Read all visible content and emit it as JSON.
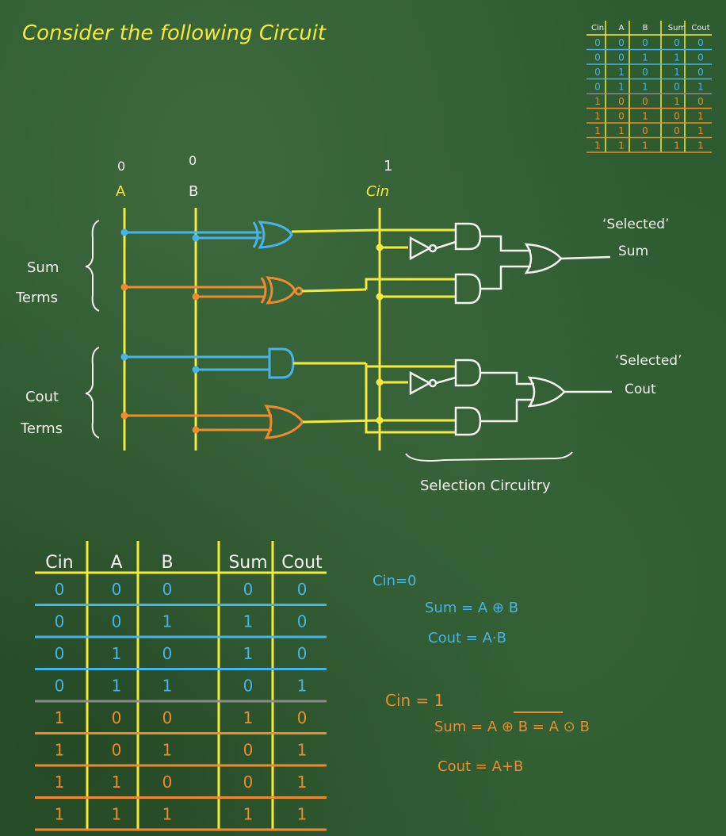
{
  "title": "Consider the following Circuit",
  "inputs": {
    "a": {
      "label": "A",
      "value": "0"
    },
    "b": {
      "label": "B",
      "value": "0"
    },
    "cin": {
      "label": "Cin",
      "value": "1"
    }
  },
  "labels": {
    "sum_terms_1": "Sum",
    "sum_terms_2": "Terms",
    "cout_terms_1": "Cout",
    "cout_terms_2": "Terms",
    "selected_sum_1": "‘Selected’",
    "selected_sum_2": "Sum",
    "selected_cout_1": "‘Selected’",
    "selected_cout_2": "Cout",
    "selection": "Selection Circuitry"
  },
  "truth_table": {
    "headers": [
      "Cin",
      "A",
      "B",
      "Sum",
      "Cout"
    ],
    "rows": [
      [
        "0",
        "0",
        "0",
        "0",
        "0"
      ],
      [
        "0",
        "0",
        "1",
        "1",
        "0"
      ],
      [
        "0",
        "1",
        "0",
        "1",
        "0"
      ],
      [
        "0",
        "1",
        "1",
        "0",
        "1"
      ],
      [
        "1",
        "0",
        "0",
        "1",
        "0"
      ],
      [
        "1",
        "0",
        "1",
        "0",
        "1"
      ],
      [
        "1",
        "1",
        "0",
        "0",
        "1"
      ],
      [
        "1",
        "1",
        "1",
        "1",
        "1"
      ]
    ]
  },
  "equations": {
    "cin0": "Cin=0",
    "cin0_sum": "Sum = A ⊕ B",
    "cin0_cout": "Cout = A·B",
    "cin1": "Cin = 1",
    "cin1_sum": "Sum = A ⊕ B = A ⊙ B",
    "cin1_cout": "Cout = A+B"
  },
  "colors": {
    "board": "#2e5b30",
    "chalk_white": "#f2f2ee",
    "chalk_yellow": "#f5ea3c",
    "chalk_blue": "#45b4ea",
    "chalk_orange": "#f08a2a",
    "chalk_grey": "#8a8a8a"
  }
}
